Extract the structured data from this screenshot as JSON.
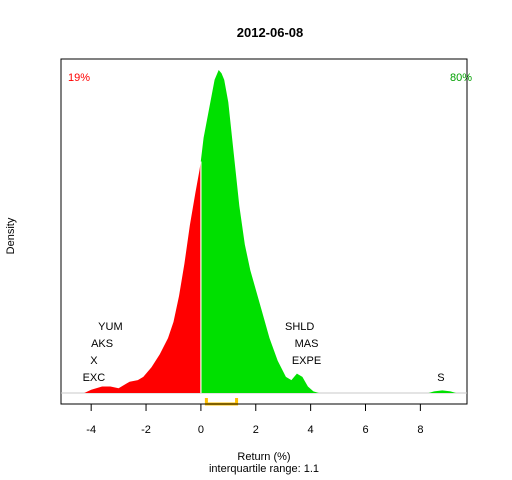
{
  "chart_data": {
    "type": "area",
    "title": "2012-06-08",
    "xlabel": "Return (%)",
    "subtitle": "interquartile range: 1.1",
    "ylabel": "Density",
    "xlim": [
      -5.1,
      9.7
    ],
    "ylim": [
      0,
      1
    ],
    "x_ticks": [
      -4,
      -2,
      0,
      2,
      4,
      6,
      8
    ],
    "x_tick_labels": [
      "-4",
      "-2",
      "0",
      "2",
      "4",
      "6",
      "8"
    ],
    "grid": false,
    "split_at": 0,
    "negative_share": "19%",
    "positive_share": "80%",
    "colors": {
      "negative": "#ff0000",
      "positive": "#00e000",
      "iqr": "#ffc000",
      "baseline": "#c8c8c8",
      "divider": "#ffffff"
    },
    "iqr": [
      0.2,
      1.3
    ],
    "density": {
      "x": [
        -4.25,
        -4.0,
        -3.6,
        -3.3,
        -3.0,
        -2.6,
        -2.3,
        -2.1,
        -1.8,
        -1.5,
        -1.2,
        -1.0,
        -0.8,
        -0.6,
        -0.4,
        -0.2,
        -0.05,
        0.0,
        0.1,
        0.3,
        0.5,
        0.65,
        0.75,
        0.85,
        1.0,
        1.2,
        1.4,
        1.6,
        1.8,
        2.0,
        2.2,
        2.5,
        2.8,
        3.1,
        3.3,
        3.5,
        3.7,
        3.9,
        4.1,
        4.3,
        4.6,
        8.3,
        8.5,
        8.8,
        9.1,
        9.3
      ],
      "y": [
        0,
        0.01,
        0.02,
        0.02,
        0.015,
        0.035,
        0.04,
        0.05,
        0.08,
        0.12,
        0.17,
        0.22,
        0.3,
        0.4,
        0.52,
        0.62,
        0.69,
        0.72,
        0.79,
        0.88,
        0.97,
        1.0,
        0.99,
        0.97,
        0.9,
        0.74,
        0.58,
        0.46,
        0.38,
        0.32,
        0.26,
        0.17,
        0.1,
        0.05,
        0.04,
        0.06,
        0.05,
        0.02,
        0.005,
        0.0,
        0.0,
        0.0,
        0.005,
        0.008,
        0.005,
        0.0
      ]
    },
    "annotations": [
      {
        "label": "YUM",
        "x": -3.3,
        "row": 4
      },
      {
        "label": "AKS",
        "x": -3.6,
        "row": 3
      },
      {
        "label": "X",
        "x": -3.9,
        "row": 2
      },
      {
        "label": "EXC",
        "x": -3.9,
        "row": 1
      },
      {
        "label": "SHLD",
        "x": 3.6,
        "row": 4
      },
      {
        "label": "MAS",
        "x": 3.85,
        "row": 3
      },
      {
        "label": "EXPE",
        "x": 3.85,
        "row": 2
      },
      {
        "label": "S",
        "x": 8.75,
        "row": 1
      }
    ]
  }
}
